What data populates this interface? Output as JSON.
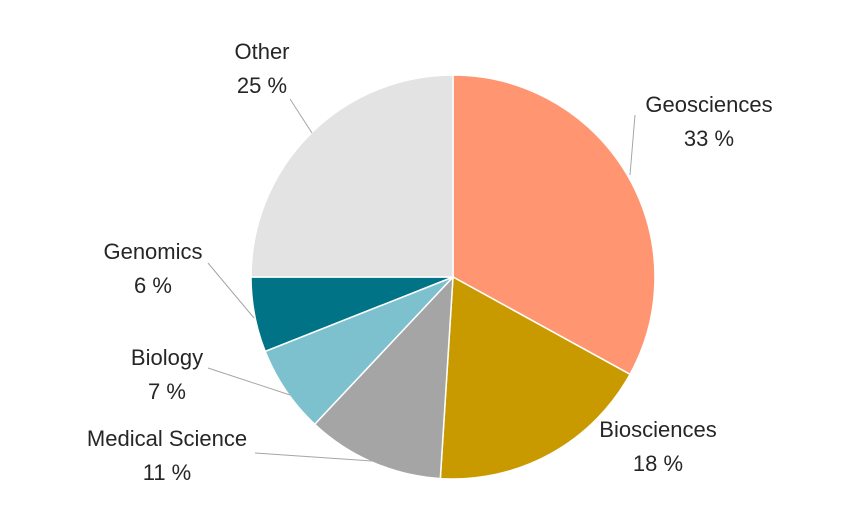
{
  "chart_data": {
    "type": "pie",
    "title": "",
    "slices": [
      {
        "label": "Geosciences",
        "value": 33,
        "value_label": "33 %",
        "color": "#FF9671"
      },
      {
        "label": "Biosciences",
        "value": 18,
        "value_label": "18 %",
        "color": "#C99A00"
      },
      {
        "label": "Medical Science",
        "value": 11,
        "value_label": "11 %",
        "color": "#A5A5A5"
      },
      {
        "label": "Biology",
        "value": 7,
        "value_label": "7 %",
        "color": "#7EC1CE"
      },
      {
        "label": "Genomics",
        "value": 6,
        "value_label": "6 %",
        "color": "#007486"
      },
      {
        "label": "Other",
        "value": 25,
        "value_label": "25 %",
        "color": "#E4E3E4"
      }
    ],
    "start_angle": "12 o'clock",
    "direction": "clockwise",
    "legend": "none",
    "leader_line_color": "#A6A6A6"
  }
}
